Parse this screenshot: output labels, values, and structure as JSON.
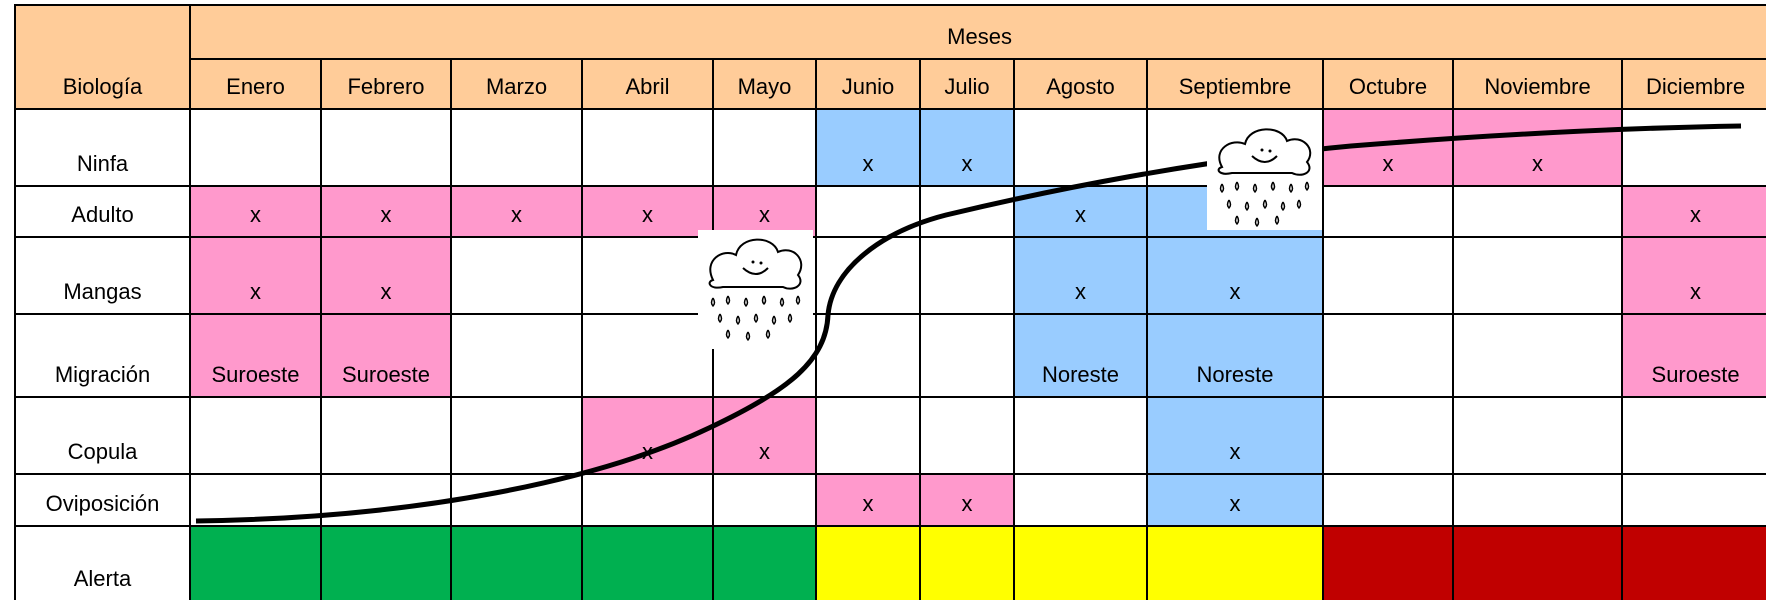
{
  "header": {
    "corner": "Biología",
    "group": "Meses",
    "months": [
      "Enero",
      "Febrero",
      "Marzo",
      "Abril",
      "Mayo",
      "Junio",
      "Julio",
      "Agosto",
      "Septiembre",
      "Octubre",
      "Noviembre",
      "Diciembre"
    ]
  },
  "palette": {
    "w": "#ffffff",
    "p": "#ff99cc",
    "b": "#99ccff",
    "g": "#00b050",
    "y": "#ffff00",
    "r": "#c00000"
  },
  "header_color": "#ffcc99",
  "rows": [
    {
      "label": "Ninfa",
      "cells": [
        null,
        null,
        null,
        null,
        null,
        "x",
        "x",
        null,
        null,
        "x",
        "x",
        null
      ],
      "colors": [
        "w",
        "w",
        "w",
        "w",
        "w",
        "b",
        "b",
        "w",
        "w",
        "p",
        "p",
        "w"
      ]
    },
    {
      "label": "Adulto",
      "cells": [
        "x",
        "x",
        "x",
        "x",
        "x",
        null,
        null,
        "x",
        null,
        null,
        null,
        "x"
      ],
      "colors": [
        "p",
        "p",
        "p",
        "p",
        "p",
        "w",
        "w",
        "b",
        "b",
        "w",
        "w",
        "p"
      ]
    },
    {
      "label": "Mangas",
      "cells": [
        "x",
        "x",
        null,
        null,
        null,
        null,
        null,
        "x",
        "x",
        null,
        null,
        "x"
      ],
      "colors": [
        "p",
        "p",
        "w",
        "w",
        "w",
        "w",
        "w",
        "b",
        "b",
        "w",
        "w",
        "p"
      ]
    },
    {
      "label": "Migración",
      "cells": [
        "Suroeste",
        "Suroeste",
        null,
        null,
        null,
        null,
        null,
        "Noreste",
        "Noreste",
        null,
        null,
        "Suroeste"
      ],
      "colors": [
        "p",
        "p",
        "w",
        "w",
        "w",
        "w",
        "w",
        "b",
        "b",
        "w",
        "w",
        "p"
      ]
    },
    {
      "label": "Copula",
      "cells": [
        null,
        null,
        null,
        "x",
        "x",
        null,
        null,
        null,
        "x",
        null,
        null,
        null
      ],
      "colors": [
        "w",
        "w",
        "w",
        "p",
        "p",
        "w",
        "w",
        "w",
        "b",
        "w",
        "w",
        "w"
      ]
    },
    {
      "label": "Oviposición",
      "cells": [
        null,
        null,
        null,
        null,
        null,
        "x",
        "x",
        null,
        "x",
        null,
        null,
        null
      ],
      "colors": [
        "w",
        "w",
        "w",
        "w",
        "w",
        "p",
        "p",
        "w",
        "b",
        "w",
        "w",
        "w"
      ]
    },
    {
      "label": "Alerta",
      "cells": [
        null,
        null,
        null,
        null,
        null,
        null,
        null,
        null,
        null,
        null,
        null,
        null
      ],
      "colors": [
        "g",
        "g",
        "g",
        "g",
        "g",
        "y",
        "y",
        "y",
        "y",
        "r",
        "r",
        "r"
      ]
    }
  ]
}
